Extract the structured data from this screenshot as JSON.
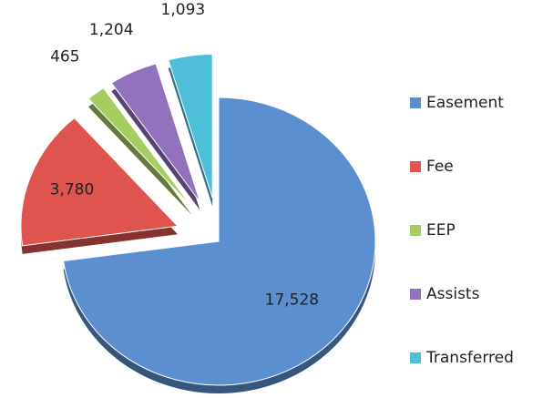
{
  "chart_data": {
    "type": "pie",
    "categories": [
      "Easement",
      "Fee",
      "EEP",
      "Assists",
      "Transferred"
    ],
    "values": [
      17528,
      3780,
      465,
      1204,
      1093
    ],
    "value_labels": [
      "17,528",
      "3,780",
      "465",
      "1,204",
      "1,093"
    ],
    "colors": [
      "#5b8fd0",
      "#e0544f",
      "#a6cd62",
      "#9272bd",
      "#4fbfd9"
    ],
    "legend": "right"
  }
}
